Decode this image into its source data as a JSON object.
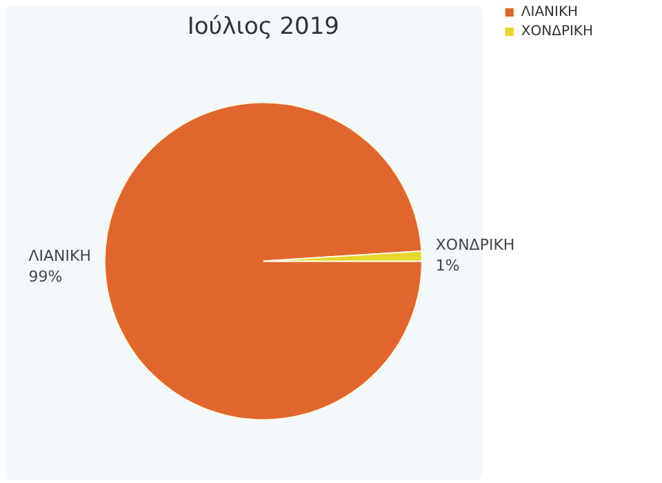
{
  "chart_data": {
    "type": "pie",
    "title": "Ιούλιος 2019",
    "categories": [
      "ΛΙΑΝΙΚΗ",
      "ΧΟΝΔΡΙΚΗ"
    ],
    "values": [
      99,
      1
    ],
    "value_labels": [
      "99%",
      "1%"
    ],
    "colors": [
      "#e0662e",
      "#e8d62a"
    ],
    "legend": "top right"
  }
}
